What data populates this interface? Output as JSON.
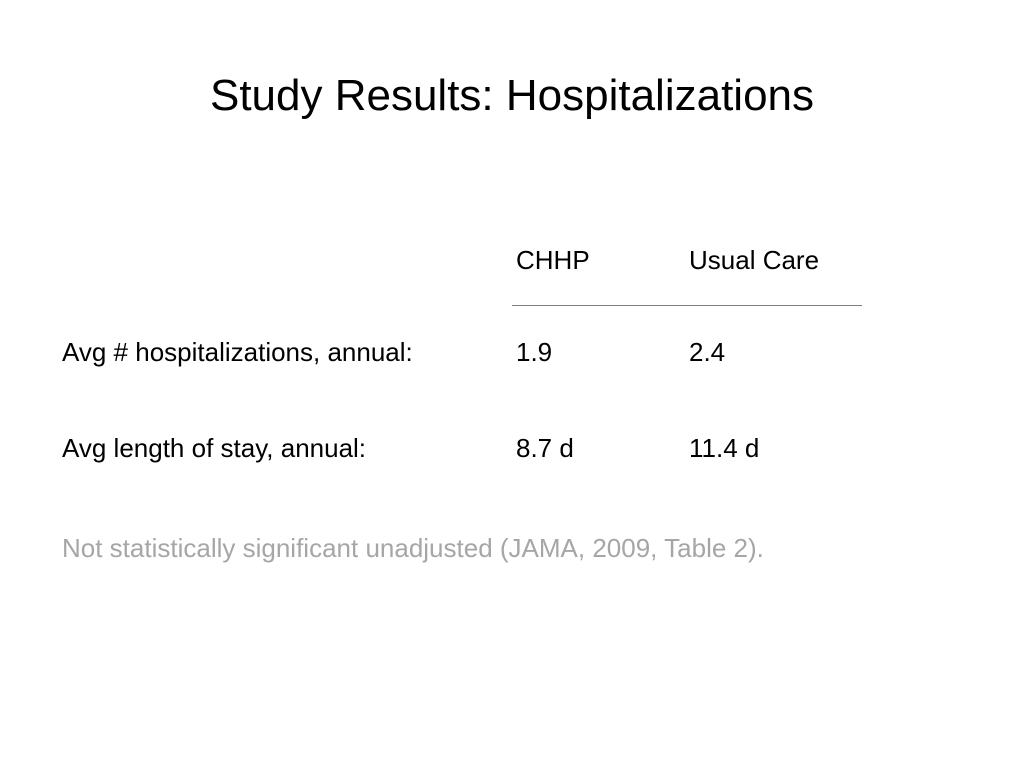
{
  "slide": {
    "title": "Study Results:  Hospitalizations"
  },
  "table": {
    "headers": [
      "CHHP",
      "Usual Care"
    ],
    "rows": [
      {
        "label": "Avg # hospitalizations, annual:",
        "chhp": "1.9",
        "usual_care": "2.4"
      },
      {
        "label": "Avg length of stay, annual:",
        "chhp": "8.7 d",
        "usual_care": "11.4 d"
      }
    ]
  },
  "footnote": "Not statistically significant unadjusted (JAMA, 2009, Table 2).",
  "colors": {
    "text": "#000000",
    "footnote": "#a6a6a6",
    "rule": "#4a86e8",
    "background": "#ffffff"
  }
}
